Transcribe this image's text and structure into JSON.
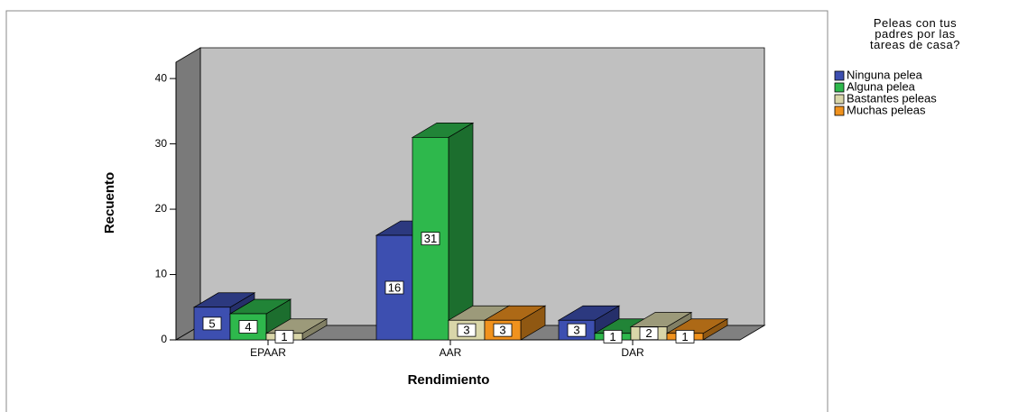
{
  "chart_data": {
    "type": "bar3d",
    "categories": [
      "EPAAR",
      "AAR",
      "DAR"
    ],
    "series": [
      {
        "name": "Ninguna pelea",
        "color": "#3d4fb0",
        "values": [
          5,
          16,
          3
        ]
      },
      {
        "name": "Alguna pelea",
        "color": "#2eb84c",
        "values": [
          4,
          31,
          1
        ]
      },
      {
        "name": "Bastantes peleas",
        "color": "#d9d6a9",
        "values": [
          1,
          3,
          2
        ]
      },
      {
        "name": "Muchas peleas",
        "color": "#f0921e",
        "values": [
          null,
          3,
          1
        ]
      }
    ],
    "xlabel": "Rendimiento",
    "ylabel": "Recuento",
    "legend_title": "Peleas con tus padres por las tareas de casa?",
    "legend": "right",
    "ylim": [
      0,
      42.5
    ],
    "yticks": [
      0,
      10,
      20,
      30,
      40
    ]
  }
}
